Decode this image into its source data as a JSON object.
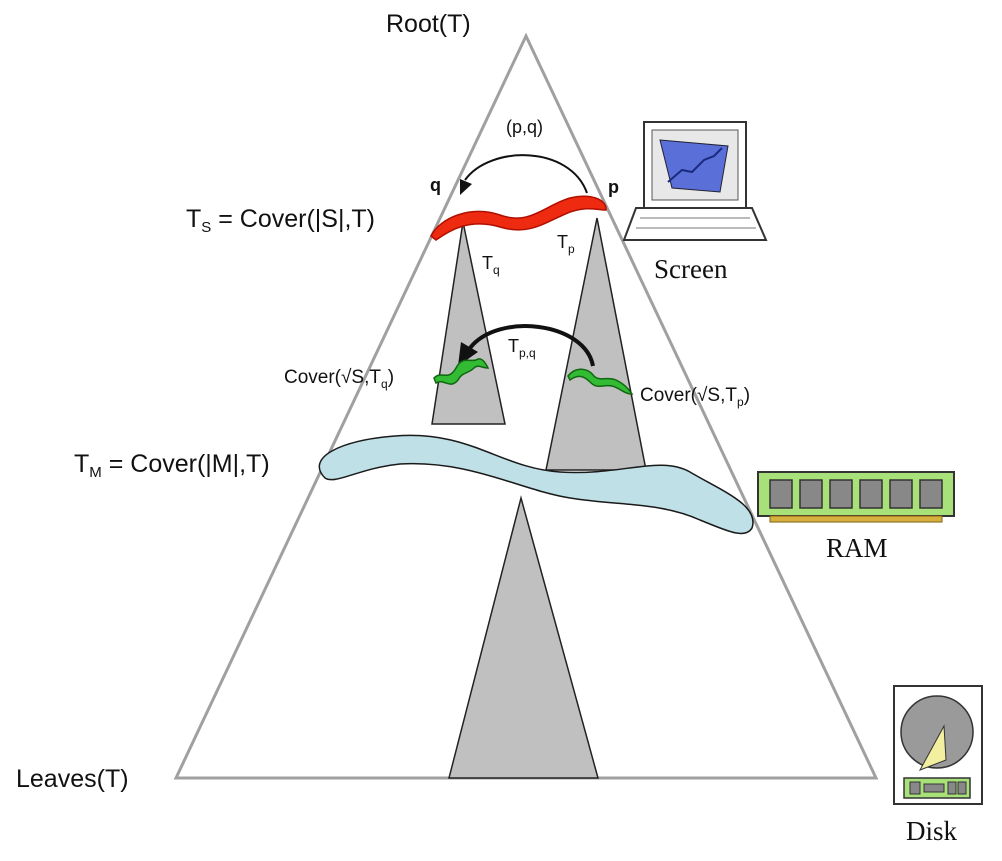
{
  "labels": {
    "root": "Root(T)",
    "leaves": "Leaves(T)",
    "pq": "(p,q)",
    "q": "q",
    "p": "p",
    "ts_main": "T",
    "ts_sub": "S",
    "ts_rest": " =  Cover(|S|,T)",
    "tq_main": "T",
    "tq_sub": "q",
    "tp_main": "T",
    "tp_sub": "p",
    "tpq_main": "T",
    "tpq_sub": "p,q",
    "cover_q_pre": "Cover(√S,T",
    "cover_q_sub": "q",
    "cover_q_post": ")",
    "cover_p_pre": "Cover(√S,T",
    "cover_p_sub": "p",
    "cover_p_post": ")",
    "tm_main": "T",
    "tm_sub": "M",
    "tm_rest": " = Cover(|M|,T)"
  },
  "devices": {
    "screen": "Screen",
    "ram": "RAM",
    "disk": "Disk"
  },
  "colors": {
    "triangle_stroke": "#a0a0a0",
    "cone_fill": "#c0c0c0",
    "red_band": "#ee2a10",
    "green_band": "#33bb33",
    "blue_band": "#bfe0e6"
  }
}
